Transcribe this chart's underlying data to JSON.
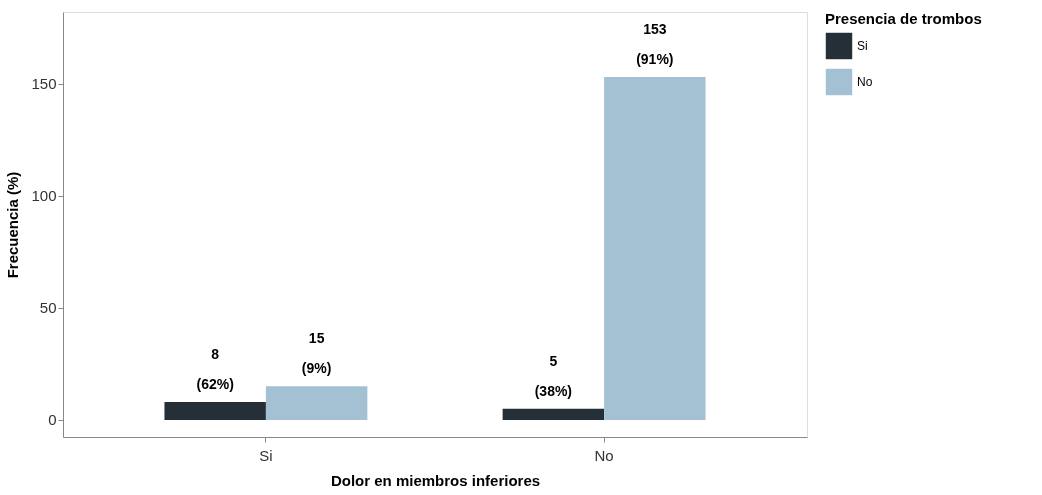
{
  "chart_data": {
    "type": "bar",
    "xlabel": "Dolor en miembros inferiores",
    "ylabel": "Frecuencia (%)",
    "legend_title": "Presencia de trombos",
    "categories": [
      "Si",
      "No"
    ],
    "series": [
      {
        "name": "Si",
        "color": "#252f38",
        "values": [
          8,
          5
        ],
        "value_labels": [
          "8\n(62%)",
          "5\n(38%)"
        ]
      },
      {
        "name": "No",
        "color": "#a3c1d3",
        "values": [
          15,
          153
        ],
        "value_labels": [
          "15\n(9%)",
          "153\n(91%)"
        ]
      }
    ],
    "ylim": [
      -7.6,
      182
    ],
    "yticks": [
      0,
      50,
      100,
      150
    ],
    "grid": false,
    "legend": "right"
  }
}
